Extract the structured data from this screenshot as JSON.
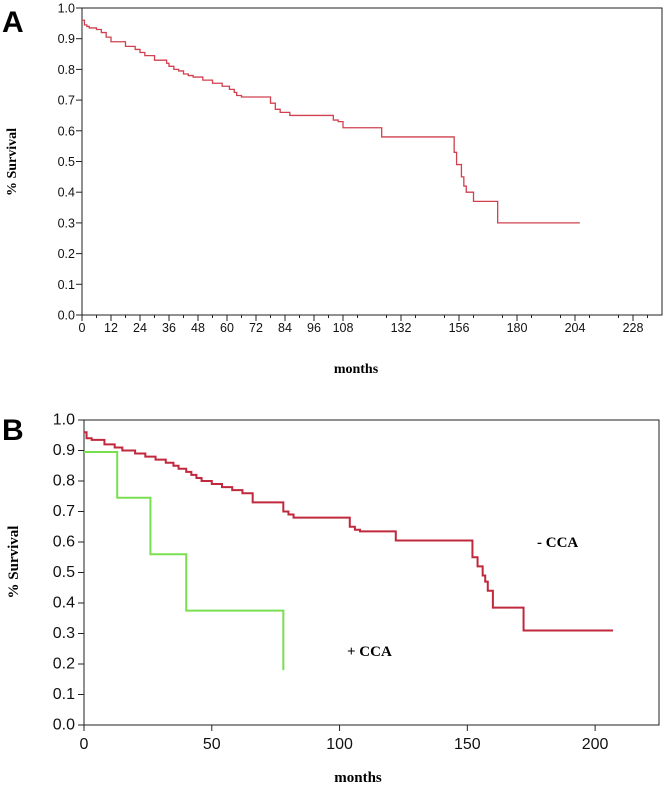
{
  "chart_data": [
    {
      "panel": "A",
      "type": "line",
      "step": true,
      "xlabel": "months",
      "ylabel": "% Survival",
      "xlim": [
        0,
        240
      ],
      "ylim": [
        0,
        1.0
      ],
      "xticks": [
        0,
        12,
        24,
        36,
        48,
        60,
        72,
        84,
        96,
        108,
        132,
        156,
        180,
        204,
        228
      ],
      "yticks": [
        0.0,
        0.1,
        0.2,
        0.3,
        0.4,
        0.5,
        0.6,
        0.7,
        0.8,
        0.9,
        1.0
      ],
      "ytick_labels": [
        "0.0",
        "0.1",
        "0.2",
        "0.3",
        "0.4",
        "0.5",
        "0.6",
        "0.7",
        "0.8",
        "0.9",
        "1.0"
      ],
      "grid": false,
      "series": [
        {
          "color": "#d0404f",
          "x": [
            0,
            1,
            2,
            3,
            6,
            8,
            10,
            12,
            18,
            22,
            24,
            26,
            30,
            35,
            36,
            38,
            40,
            42,
            44,
            46,
            50,
            54,
            58,
            61,
            63,
            64,
            66,
            78,
            80,
            82,
            86,
            104,
            106,
            108,
            124,
            154,
            155,
            157,
            158,
            159,
            162,
            172,
            206
          ],
          "y": [
            0.96,
            0.945,
            0.94,
            0.935,
            0.93,
            0.92,
            0.905,
            0.89,
            0.875,
            0.865,
            0.855,
            0.845,
            0.83,
            0.82,
            0.81,
            0.8,
            0.795,
            0.785,
            0.78,
            0.775,
            0.765,
            0.755,
            0.745,
            0.735,
            0.725,
            0.715,
            0.71,
            0.69,
            0.67,
            0.66,
            0.65,
            0.635,
            0.63,
            0.61,
            0.58,
            0.53,
            0.49,
            0.45,
            0.42,
            0.4,
            0.37,
            0.3,
            0.3
          ]
        }
      ]
    },
    {
      "panel": "B",
      "type": "line",
      "step": true,
      "xlabel": "months",
      "ylabel": "% Survival",
      "xlim": [
        0,
        225
      ],
      "ylim": [
        0,
        1.0
      ],
      "xticks": [
        0,
        50,
        100,
        150,
        200
      ],
      "yticks": [
        0.0,
        0.1,
        0.2,
        0.3,
        0.4,
        0.5,
        0.6,
        0.7,
        0.8,
        0.9,
        1.0
      ],
      "ytick_labels": [
        "0.0",
        "0.1",
        "0.2",
        "0.3",
        "0.4",
        "0.5",
        "0.6",
        "0.7",
        "0.8",
        "0.9",
        "1.0"
      ],
      "grid": false,
      "annotations": [
        "- CCA",
        "+ CCA"
      ],
      "series": [
        {
          "name": "- CCA",
          "color": "#c0283c",
          "x": [
            0,
            1,
            3,
            8,
            12,
            15,
            20,
            24,
            28,
            32,
            35,
            37,
            40,
            42,
            44,
            46,
            50,
            54,
            58,
            62,
            66,
            78,
            80,
            82,
            86,
            104,
            106,
            108,
            122,
            152,
            154,
            156,
            157,
            158,
            160,
            172,
            207
          ],
          "y": [
            0.96,
            0.94,
            0.935,
            0.92,
            0.91,
            0.9,
            0.89,
            0.88,
            0.87,
            0.86,
            0.85,
            0.84,
            0.83,
            0.82,
            0.81,
            0.8,
            0.79,
            0.78,
            0.77,
            0.76,
            0.73,
            0.7,
            0.69,
            0.68,
            0.68,
            0.65,
            0.64,
            0.635,
            0.605,
            0.55,
            0.52,
            0.49,
            0.47,
            0.44,
            0.385,
            0.31,
            0.31
          ]
        },
        {
          "name": "+ CCA",
          "color": "#78e050",
          "x": [
            0,
            13,
            26,
            40,
            78
          ],
          "y": [
            0.895,
            0.745,
            0.56,
            0.375,
            0.18
          ]
        }
      ]
    }
  ]
}
